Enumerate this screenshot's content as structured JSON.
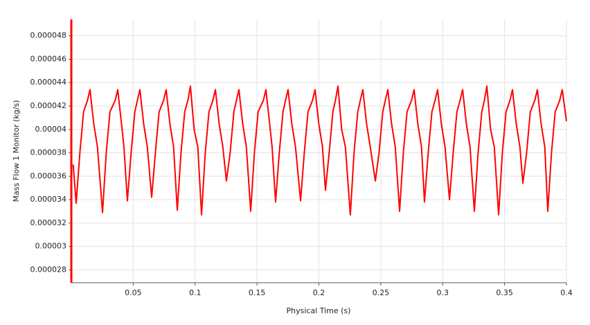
{
  "chart_data": {
    "type": "line",
    "xlabel": "Physical Time (s)",
    "ylabel": "Mass Flow 1 Monitor (kg/s)",
    "xlim": [
      0,
      0.4
    ],
    "ylim": [
      2.69e-05,
      4.94e-05
    ],
    "xticks": [
      0.05,
      0.1,
      0.15,
      0.2,
      0.25,
      0.3,
      0.35,
      0.4
    ],
    "yticks": [
      2.8e-05,
      3e-05,
      3.2e-05,
      3.4e-05,
      3.6e-05,
      3.8e-05,
      4e-05,
      4.2e-05,
      4.4e-05,
      4.6e-05,
      4.8e-05
    ],
    "grid": true,
    "x": [
      0.0015,
      0.0039,
      0.0069,
      0.0099,
      0.0131,
      0.0151,
      0.0181,
      0.0211,
      0.0252,
      0.0282,
      0.0312,
      0.0355,
      0.0375,
      0.0405,
      0.0425,
      0.0453,
      0.0483,
      0.0513,
      0.0534,
      0.0554,
      0.0584,
      0.0614,
      0.0649,
      0.0679,
      0.0709,
      0.0746,
      0.0766,
      0.0796,
      0.0826,
      0.0856,
      0.0886,
      0.0916,
      0.0942,
      0.0962,
      0.0992,
      0.1022,
      0.1052,
      0.1082,
      0.1112,
      0.1144,
      0.1164,
      0.1194,
      0.1224,
      0.1253,
      0.1283,
      0.1313,
      0.1334,
      0.1354,
      0.1384,
      0.1414,
      0.1449,
      0.1479,
      0.1509,
      0.1552,
      0.1572,
      0.1602,
      0.1622,
      0.165,
      0.168,
      0.171,
      0.1731,
      0.1751,
      0.1781,
      0.1811,
      0.1852,
      0.1882,
      0.1912,
      0.1949,
      0.1969,
      0.1999,
      0.2029,
      0.2053,
      0.2083,
      0.2113,
      0.2134,
      0.2154,
      0.2184,
      0.2214,
      0.2254,
      0.2284,
      0.2314,
      0.2335,
      0.2355,
      0.2385,
      0.2415,
      0.2456,
      0.2486,
      0.2516,
      0.2537,
      0.2557,
      0.2587,
      0.2617,
      0.2652,
      0.2682,
      0.2712,
      0.2749,
      0.2769,
      0.2799,
      0.2829,
      0.2853,
      0.2883,
      0.2913,
      0.2939,
      0.2959,
      0.2989,
      0.3019,
      0.3055,
      0.3085,
      0.3115,
      0.3141,
      0.3161,
      0.3191,
      0.3221,
      0.3256,
      0.3286,
      0.3316,
      0.3337,
      0.3357,
      0.3387,
      0.3417,
      0.3452,
      0.3482,
      0.3512,
      0.3544,
      0.3564,
      0.3594,
      0.3624,
      0.3648,
      0.3678,
      0.3708,
      0.3745,
      0.3765,
      0.3795,
      0.3825,
      0.3849,
      0.3879,
      0.3909,
      0.3946,
      0.3966,
      0.4
    ],
    "series": [
      {
        "name": "Mass Flow 1 Monitor",
        "color": "#ff0000",
        "values": [
          3.7e-05,
          3.37e-05,
          3.8e-05,
          4.15e-05,
          4.25e-05,
          4.34e-05,
          4.05e-05,
          3.85e-05,
          3.29e-05,
          3.8e-05,
          4.15e-05,
          4.25e-05,
          4.34e-05,
          4.05e-05,
          3.85e-05,
          3.39e-05,
          3.8e-05,
          4.15e-05,
          4.25e-05,
          4.34e-05,
          4.05e-05,
          3.85e-05,
          3.42e-05,
          3.8e-05,
          4.15e-05,
          4.25e-05,
          4.34e-05,
          4.05e-05,
          3.85e-05,
          3.31e-05,
          3.8e-05,
          4.15e-05,
          4.25e-05,
          4.37e-05,
          4e-05,
          3.85e-05,
          3.27e-05,
          3.8e-05,
          4.15e-05,
          4.25e-05,
          4.34e-05,
          4.05e-05,
          3.85e-05,
          3.56e-05,
          3.8e-05,
          4.15e-05,
          4.25e-05,
          4.34e-05,
          4.05e-05,
          3.85e-05,
          3.3e-05,
          3.8e-05,
          4.15e-05,
          4.25e-05,
          4.34e-05,
          4.05e-05,
          3.85e-05,
          3.38e-05,
          3.8e-05,
          4.15e-05,
          4.25e-05,
          4.34e-05,
          4.05e-05,
          3.85e-05,
          3.39e-05,
          3.8e-05,
          4.15e-05,
          4.25e-05,
          4.34e-05,
          4.05e-05,
          3.85e-05,
          3.48e-05,
          3.8e-05,
          4.15e-05,
          4.25e-05,
          4.37e-05,
          4e-05,
          3.85e-05,
          3.27e-05,
          3.8e-05,
          4.15e-05,
          4.25e-05,
          4.34e-05,
          4.05e-05,
          3.85e-05,
          3.56e-05,
          3.8e-05,
          4.15e-05,
          4.25e-05,
          4.34e-05,
          4.05e-05,
          3.85e-05,
          3.3e-05,
          3.8e-05,
          4.15e-05,
          4.25e-05,
          4.34e-05,
          4.05e-05,
          3.85e-05,
          3.38e-05,
          3.8e-05,
          4.15e-05,
          4.25e-05,
          4.34e-05,
          4.05e-05,
          3.85e-05,
          3.4e-05,
          3.8e-05,
          4.15e-05,
          4.25e-05,
          4.34e-05,
          4.05e-05,
          3.85e-05,
          3.3e-05,
          3.8e-05,
          4.15e-05,
          4.25e-05,
          4.37e-05,
          4e-05,
          3.85e-05,
          3.27e-05,
          3.8e-05,
          4.15e-05,
          4.25e-05,
          4.34e-05,
          4.05e-05,
          3.85e-05,
          3.54e-05,
          3.8e-05,
          4.15e-05,
          4.25e-05,
          4.34e-05,
          4.05e-05,
          3.85e-05,
          3.3e-05,
          3.8e-05,
          4.15e-05,
          4.25e-05,
          4.34e-05,
          4.07e-05
        ]
      }
    ]
  }
}
